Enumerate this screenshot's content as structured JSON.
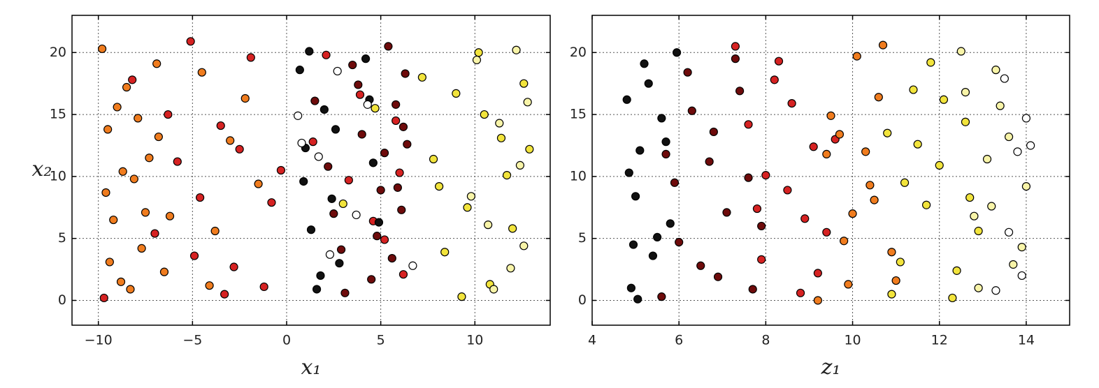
{
  "chart_data": [
    {
      "type": "scatter",
      "xlabel": "x₁",
      "ylabel": "x₂",
      "grid": true,
      "xlim": [
        -11.4,
        14
      ],
      "ylim": [
        -2,
        23
      ],
      "xticks": [
        {
          "value": -10,
          "label": "−10"
        },
        {
          "value": -5,
          "label": "−5"
        },
        0,
        5,
        10
      ],
      "yticks": [
        0,
        5,
        10,
        15,
        20
      ],
      "series": [
        {
          "color": "#f07c1e",
          "x": [
            -9.8,
            -9.5,
            -9.2,
            -8.8,
            -8.5,
            -8.1,
            -7.7,
            -7.3,
            -6.9,
            -6.5,
            -9.6,
            -9.0,
            -8.3,
            -7.5,
            -6.8,
            -4.5,
            -3.8,
            -3.0,
            -2.2,
            -1.5,
            -9.4,
            -8.7,
            -7.9,
            -6.2,
            -4.1
          ],
          "values": [
            20.3,
            13.8,
            6.5,
            1.5,
            17.2,
            9.8,
            4.2,
            11.5,
            19.1,
            2.3,
            8.7,
            15.6,
            0.9,
            7.1,
            13.2,
            18.4,
            5.6,
            12.9,
            16.3,
            9.4,
            3.1,
            10.4,
            14.7,
            6.8,
            1.2
          ]
        },
        {
          "color": "#d62222",
          "x": [
            -9.7,
            -8.2,
            -7.0,
            -5.8,
            -5.1,
            -4.6,
            -3.5,
            -2.8,
            -1.9,
            -0.8,
            -0.3,
            -6.3,
            -4.9,
            -2.5,
            -1.2,
            2.1,
            3.3,
            4.6,
            5.8,
            6.2,
            1.4,
            3.9,
            5.2,
            6.0,
            -3.3
          ],
          "values": [
            0.2,
            17.8,
            5.4,
            11.2,
            20.9,
            8.3,
            14.1,
            2.7,
            19.6,
            7.9,
            10.5,
            15.0,
            3.6,
            12.2,
            1.1,
            19.8,
            9.7,
            6.4,
            14.5,
            2.1,
            12.8,
            16.6,
            4.9,
            10.3,
            0.5
          ]
        },
        {
          "color": "#111111",
          "x": [
            0.7,
            1.0,
            1.3,
            1.6,
            2.0,
            2.4,
            2.8,
            4.2,
            4.6,
            4.9,
            0.9,
            1.8,
            2.6,
            4.4,
            1.2
          ],
          "values": [
            18.6,
            12.3,
            5.7,
            0.9,
            15.4,
            8.2,
            3.0,
            19.5,
            11.1,
            6.3,
            9.6,
            2.0,
            13.8,
            16.2,
            20.1
          ]
        },
        {
          "color": "#6e0b0b",
          "x": [
            1.5,
            2.2,
            2.9,
            3.5,
            4.0,
            4.5,
            5.0,
            5.4,
            5.8,
            6.1,
            6.4,
            3.1,
            3.8,
            4.8,
            5.6,
            6.3,
            2.5,
            5.2,
            5.9,
            6.2
          ],
          "values": [
            16.1,
            10.8,
            4.1,
            19.0,
            13.4,
            1.7,
            8.9,
            20.5,
            15.8,
            7.3,
            12.6,
            0.6,
            17.4,
            5.2,
            3.4,
            18.3,
            7.0,
            11.9,
            9.1,
            14.0
          ]
        },
        {
          "color": "#f2e43c",
          "x": [
            7.2,
            7.8,
            8.4,
            9.0,
            9.6,
            10.2,
            10.8,
            11.4,
            12.0,
            12.6,
            8.1,
            9.3,
            10.5,
            11.7,
            12.9,
            3.0,
            4.7
          ],
          "values": [
            18.0,
            11.4,
            3.9,
            16.7,
            7.5,
            20.0,
            1.3,
            13.1,
            5.8,
            17.5,
            9.2,
            0.3,
            15.0,
            10.1,
            12.2,
            7.8,
            15.5
          ]
        },
        {
          "color": "#f8f4a8",
          "x": [
            10.1,
            10.7,
            11.3,
            11.9,
            12.4,
            12.8,
            11.0,
            12.2,
            9.8,
            12.6
          ],
          "values": [
            19.4,
            6.1,
            14.3,
            2.6,
            10.9,
            16.0,
            0.9,
            20.2,
            8.4,
            4.4
          ]
        },
        {
          "color": "#ffffff",
          "x": [
            0.6,
            1.7,
            2.3,
            3.7,
            4.3,
            6.7,
            0.8,
            2.7
          ],
          "values": [
            14.9,
            11.6,
            3.7,
            6.9,
            15.8,
            2.8,
            12.7,
            18.5
          ]
        }
      ]
    },
    {
      "type": "scatter",
      "xlabel": "z₁",
      "grid": true,
      "xlim": [
        4,
        15
      ],
      "ylim": [
        -2,
        23
      ],
      "xticks": [
        4,
        6,
        8,
        10,
        12,
        14
      ],
      "yticks": [
        0,
        5,
        10,
        15,
        20
      ],
      "series": [
        {
          "color": "#111111",
          "x": [
            4.8,
            4.9,
            5.0,
            5.1,
            5.2,
            5.4,
            5.6,
            5.8,
            4.85,
            5.05,
            5.3,
            5.5,
            5.7,
            5.95,
            4.95
          ],
          "values": [
            16.2,
            1.0,
            8.4,
            12.1,
            19.1,
            3.6,
            14.7,
            6.2,
            10.3,
            0.1,
            17.5,
            5.1,
            12.8,
            20.0,
            4.5
          ]
        },
        {
          "color": "#6e0b0b",
          "x": [
            5.6,
            5.9,
            6.2,
            6.5,
            6.8,
            7.1,
            7.4,
            7.7,
            6.0,
            6.7,
            7.3,
            6.3,
            7.9,
            6.9,
            5.7,
            7.6
          ],
          "values": [
            0.3,
            9.5,
            18.4,
            2.8,
            13.6,
            7.1,
            16.9,
            0.9,
            4.7,
            11.2,
            19.5,
            15.3,
            6.0,
            1.9,
            11.8,
            9.9
          ]
        },
        {
          "color": "#d62222",
          "x": [
            7.3,
            7.6,
            7.9,
            8.2,
            8.5,
            8.8,
            9.1,
            9.4,
            8.0,
            8.6,
            9.2,
            7.8,
            8.3,
            9.6,
            8.9
          ],
          "values": [
            20.5,
            14.2,
            3.3,
            17.8,
            8.9,
            0.6,
            12.4,
            5.5,
            10.1,
            15.9,
            2.2,
            7.4,
            19.3,
            13.0,
            6.6
          ]
        },
        {
          "color": "#f07c1e",
          "x": [
            9.2,
            9.5,
            9.8,
            10.1,
            10.4,
            10.7,
            11.0,
            9.4,
            10.0,
            10.6,
            10.9,
            9.7,
            10.3,
            9.9,
            10.5
          ],
          "values": [
            0.0,
            14.9,
            4.8,
            19.7,
            9.3,
            20.6,
            1.6,
            11.8,
            7.0,
            16.4,
            3.9,
            13.4,
            12.0,
            1.3,
            8.1
          ]
        },
        {
          "color": "#f2e43c",
          "x": [
            10.8,
            11.1,
            11.4,
            11.7,
            12.0,
            12.3,
            12.6,
            12.9,
            11.2,
            11.8,
            12.4,
            11.5,
            12.7,
            10.9,
            12.1
          ],
          "values": [
            13.5,
            3.1,
            17.0,
            7.7,
            10.9,
            0.2,
            14.4,
            5.6,
            9.5,
            19.2,
            2.4,
            12.6,
            8.3,
            0.5,
            16.2
          ]
        },
        {
          "color": "#f8f4a8",
          "x": [
            12.5,
            12.8,
            13.1,
            13.4,
            13.7,
            14.0,
            12.9,
            13.3,
            13.6,
            13.9,
            13.2,
            12.6
          ],
          "values": [
            20.1,
            6.8,
            11.4,
            15.7,
            2.9,
            9.2,
            1.0,
            18.6,
            13.2,
            4.3,
            7.6,
            16.8
          ]
        },
        {
          "color": "#ffffff",
          "x": [
            13.3,
            13.6,
            13.8,
            14.0,
            14.1,
            13.5,
            13.9
          ],
          "values": [
            0.8,
            5.5,
            12.0,
            14.7,
            12.5,
            17.9,
            2.0
          ]
        }
      ]
    }
  ]
}
